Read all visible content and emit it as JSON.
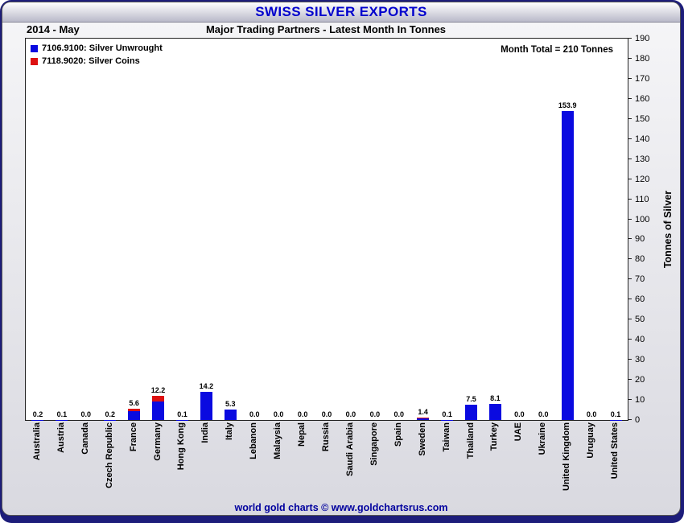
{
  "header": {
    "title": "SWISS SILVER EXPORTS",
    "date": "2014 - May",
    "subtitle": "Major Trading Partners - Latest Month In Tonnes",
    "month_total": "Month Total = 210 Tonnes"
  },
  "footer": {
    "text": "world gold charts © www.goldchartsrus.com"
  },
  "chart_data": {
    "type": "bar",
    "stacked": true,
    "title": "SWISS SILVER EXPORTS",
    "subtitle": "Major Trading Partners - Latest Month In Tonnes",
    "ylabel": "Tonnes of Silver",
    "ylim": [
      0,
      190
    ],
    "ytick_step": 10,
    "grid": false,
    "legend_position": "top-left",
    "categories": [
      "Australia",
      "Austria",
      "Canada",
      "Czech Republic",
      "France",
      "Germany",
      "Hong Kong",
      "India",
      "Italy",
      "Lebanon",
      "Malaysia",
      "Nepal",
      "Russia",
      "Saudi Arabia",
      "Singapore",
      "Spain",
      "Sweden",
      "Taiwan",
      "Thailand",
      "Turkey",
      "UAE",
      "Ukraine",
      "United Kingdom",
      "Uruguay",
      "United States"
    ],
    "series": [
      {
        "name": "7106.9100: Silver Unwrought",
        "color": "#0a0ae0",
        "values": [
          0.2,
          0.1,
          0.0,
          0.2,
          4.3,
          9.3,
          0.1,
          14.2,
          5.3,
          0.0,
          0.0,
          0.0,
          0.0,
          0.0,
          0.0,
          0.0,
          0.7,
          0.1,
          7.5,
          8.1,
          0.0,
          0.0,
          153.9,
          0.0,
          0.1
        ]
      },
      {
        "name": "7118.9020: Silver Coins",
        "color": "#dd1111",
        "values": [
          0.0,
          0.0,
          0.0,
          0.0,
          1.3,
          2.9,
          0.0,
          0.0,
          0.0,
          0.0,
          0.0,
          0.0,
          0.0,
          0.0,
          0.0,
          0.0,
          0.7,
          0.0,
          0.0,
          0.0,
          0.0,
          0.0,
          0.0,
          0.0,
          0.0
        ]
      }
    ],
    "totals_labels": [
      "0.2",
      "0.1",
      "0.0",
      "0.2",
      "5.6",
      "12.2",
      "0.1",
      "14.2",
      "5.3",
      "0.0",
      "0.0",
      "0.0",
      "0.0",
      "0.0",
      "0.0",
      "0.0",
      "1.4",
      "0.1",
      "7.5",
      "8.1",
      "0.0",
      "0.0",
      "153.9",
      "0.0",
      "0.1"
    ]
  }
}
